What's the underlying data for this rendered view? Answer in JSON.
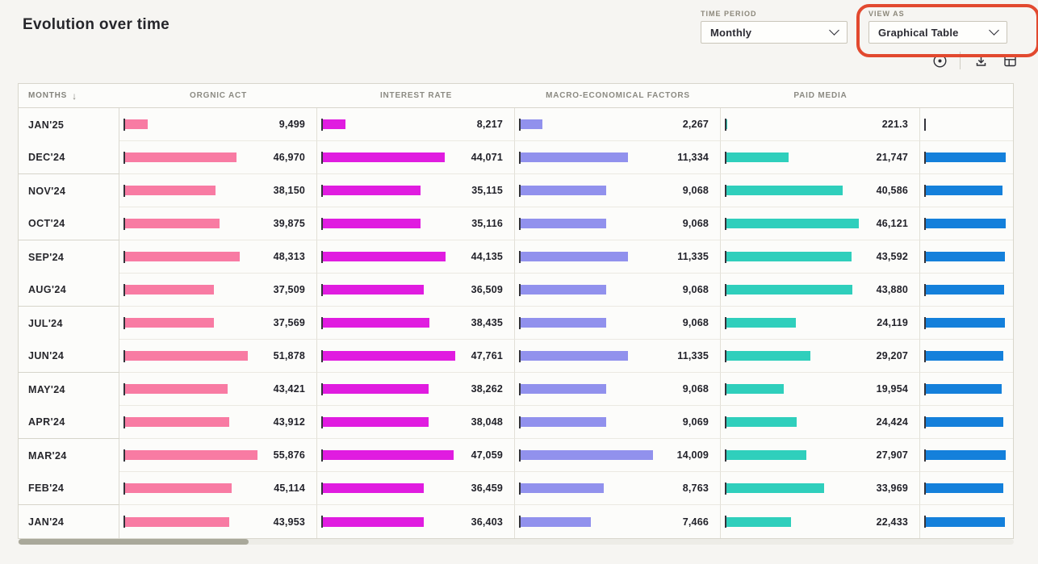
{
  "header": {
    "title": "Evolution over time",
    "controls": [
      {
        "id": "time-period",
        "label": "TIME PERIOD",
        "value": "Monthly"
      },
      {
        "id": "view-as",
        "label": "VIEW AS",
        "value": "Graphical Table"
      }
    ],
    "toolbar_icons": [
      "focus-dot-icon",
      "download-icon",
      "table-view-icon"
    ],
    "annotation": {
      "color": "#E2492F"
    }
  },
  "chart_data": {
    "type": "table",
    "title": "Evolution over time",
    "sort": {
      "column": "MONTHS",
      "direction": "desc",
      "glyph": "↓"
    },
    "row_group_size": 2,
    "bar_scale_note": "bars scaled to each column max",
    "columns": [
      {
        "label": "MONTHS",
        "color": null
      },
      {
        "label": "ORGNIC ACT",
        "color": "#F87BA3"
      },
      {
        "label": "INTEREST RATE",
        "color": "#E01CE0"
      },
      {
        "label": "MACRO-ECONOMICAL FACTORS",
        "color": "#9191ED"
      },
      {
        "label": "PAID MEDIA",
        "color": "#2FCFBC"
      },
      {
        "label": "",
        "color": "#1480DB",
        "partial": true
      }
    ],
    "rows": [
      {
        "month": "JAN'25",
        "values": [
          9499,
          8217,
          2267,
          221.3
        ],
        "display": [
          "9,499",
          "8,217",
          "2,267",
          "221.3"
        ],
        "partial_bar_fraction": 0
      },
      {
        "month": "DEC'24",
        "values": [
          46970,
          44071,
          11334,
          21747
        ],
        "display": [
          "46,970",
          "44,071",
          "11,334",
          "21,747"
        ],
        "partial_bar_fraction": 0.97
      },
      {
        "month": "NOV'24",
        "values": [
          38150,
          35115,
          9068,
          40586
        ],
        "display": [
          "38,150",
          "35,115",
          "9,068",
          "40,586"
        ],
        "partial_bar_fraction": 0.93
      },
      {
        "month": "OCT'24",
        "values": [
          39875,
          35116,
          9068,
          46121
        ],
        "display": [
          "39,875",
          "35,116",
          "9,068",
          "46,121"
        ],
        "partial_bar_fraction": 0.97
      },
      {
        "month": "SEP'24",
        "values": [
          48313,
          44135,
          11335,
          43592
        ],
        "display": [
          "48,313",
          "44,135",
          "11,335",
          "43,592"
        ],
        "partial_bar_fraction": 0.96
      },
      {
        "month": "AUG'24",
        "values": [
          37509,
          36509,
          9068,
          43880
        ],
        "display": [
          "37,509",
          "36,509",
          "9,068",
          "43,880"
        ],
        "partial_bar_fraction": 0.95
      },
      {
        "month": "JUL'24",
        "values": [
          37569,
          38435,
          9068,
          24119
        ],
        "display": [
          "37,569",
          "38,435",
          "9,068",
          "24,119"
        ],
        "partial_bar_fraction": 0.96
      },
      {
        "month": "JUN'24",
        "values": [
          51878,
          47761,
          11335,
          29207
        ],
        "display": [
          "51,878",
          "47,761",
          "11,335",
          "29,207"
        ],
        "partial_bar_fraction": 0.94
      },
      {
        "month": "MAY'24",
        "values": [
          43421,
          38262,
          9068,
          19954
        ],
        "display": [
          "43,421",
          "38,262",
          "9,068",
          "19,954"
        ],
        "partial_bar_fraction": 0.92
      },
      {
        "month": "APR'24",
        "values": [
          43912,
          38048,
          9069,
          24424
        ],
        "display": [
          "43,912",
          "38,048",
          "9,069",
          "24,424"
        ],
        "partial_bar_fraction": 0.94
      },
      {
        "month": "MAR'24",
        "values": [
          55876,
          47059,
          14009,
          27907
        ],
        "display": [
          "55,876",
          "47,059",
          "14,009",
          "27,907"
        ],
        "partial_bar_fraction": 0.97
      },
      {
        "month": "FEB'24",
        "values": [
          45114,
          36459,
          8763,
          33969
        ],
        "display": [
          "45,114",
          "36,459",
          "8,763",
          "33,969"
        ],
        "partial_bar_fraction": 0.94
      },
      {
        "month": "JAN'24",
        "values": [
          43953,
          36403,
          7466,
          22433
        ],
        "display": [
          "43,953",
          "36,403",
          "7,466",
          "22,433"
        ],
        "partial_bar_fraction": 0.96
      }
    ]
  },
  "colors": {
    "background": "#F6F5F2",
    "table_background": "#FCFCFA",
    "annotation": "#E2492F",
    "scrollbar_thumb": "#A9A89A"
  }
}
